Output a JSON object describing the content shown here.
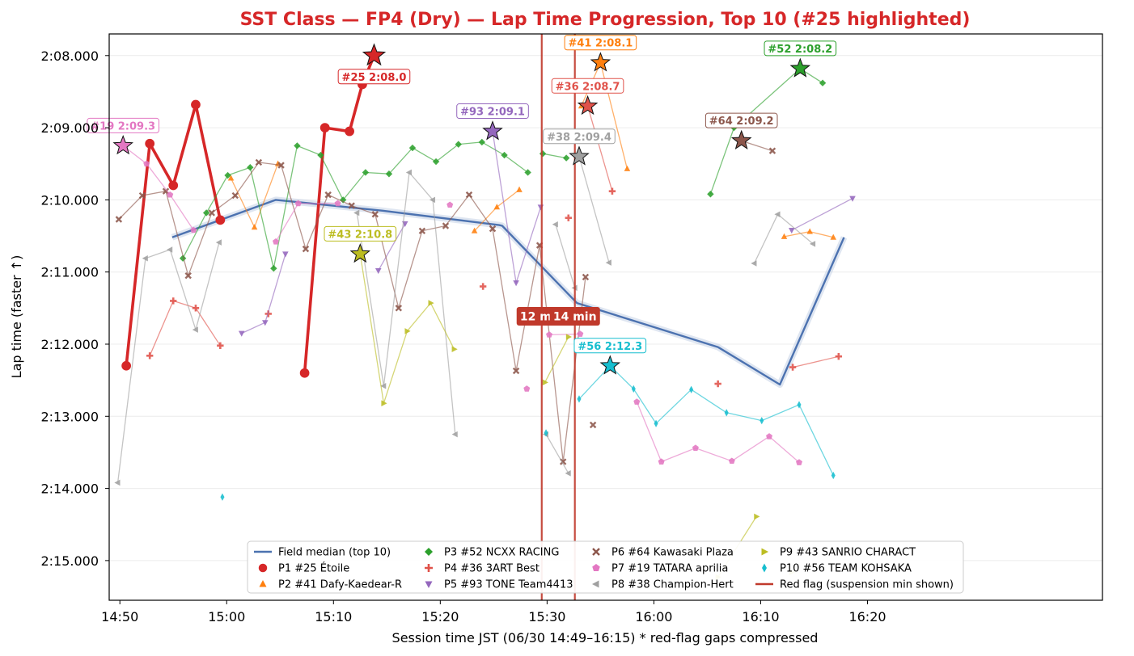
{
  "chart_data": {
    "type": "line",
    "title": "SST Class — FP4 (Dry) — Lap Time Progression, Top 10  (#25 highlighted)",
    "xlabel": "Session time JST (06/30 14:49–16:15)   * red-flag gaps compressed",
    "ylabel": "Lap time (faster ↑)",
    "x_unit": "minutes from 14:50 (plot axis, gaps compressed)",
    "xlim": [
      -1,
      92
    ],
    "x_ticks": [
      {
        "t": 0,
        "label": "14:50"
      },
      {
        "t": 10,
        "label": "15:00"
      },
      {
        "t": 20,
        "label": "15:10"
      },
      {
        "t": 30,
        "label": "15:20"
      },
      {
        "t": 40,
        "label": "15:30"
      },
      {
        "t": 50,
        "label": "16:00"
      },
      {
        "t": 60,
        "label": "16:10"
      },
      {
        "t": 70,
        "label": "16:20"
      }
    ],
    "ylim": [
      127.7,
      135.55
    ],
    "y_ticks": [
      {
        "v": 128,
        "label": "2:08.000"
      },
      {
        "v": 129,
        "label": "2:09.000"
      },
      {
        "v": 130,
        "label": "2:10.000"
      },
      {
        "v": 131,
        "label": "2:11.000"
      },
      {
        "v": 132,
        "label": "2:12.000"
      },
      {
        "v": 133,
        "label": "2:13.000"
      },
      {
        "v": 134,
        "label": "2:14.000"
      },
      {
        "v": 135,
        "label": "2:15.000"
      }
    ],
    "y_inverted": true,
    "grid": "horizontal",
    "legend_position": "lower-center",
    "red_flags": [
      {
        "t": 39.5,
        "label": "12 min"
      },
      {
        "t": 42.6,
        "label": "14 min"
      }
    ],
    "median": {
      "name": "Field median (top 10)",
      "color": "#4c72b0",
      "points": [
        [
          4.9,
          130.52
        ],
        [
          14.6,
          130.0
        ],
        [
          24.6,
          130.15
        ],
        [
          35.5,
          130.35
        ],
        [
          35.8,
          130.36
        ],
        [
          42.8,
          131.43
        ],
        [
          56.0,
          132.04
        ],
        [
          61.8,
          132.56
        ],
        [
          67.8,
          130.52
        ]
      ]
    },
    "series": [
      {
        "name": "P1 #25 Étoile",
        "color": "#d62728",
        "marker": "circle",
        "highlight": true,
        "best": {
          "t": 23.8,
          "v": 128.0,
          "label": "#25 2:08.0"
        },
        "segments": [
          [
            [
              0.6,
              132.3
            ],
            [
              2.8,
              129.22
            ],
            [
              5.0,
              129.8
            ],
            [
              7.1,
              128.68
            ],
            [
              9.4,
              130.28
            ]
          ],
          [
            [
              17.3,
              132.4
            ],
            [
              19.2,
              129.0
            ],
            [
              21.5,
              129.05
            ],
            [
              22.7,
              128.4
            ],
            [
              23.8,
              128.0
            ]
          ]
        ]
      },
      {
        "name": "P2 #41 Dafy-Kaedear-R",
        "color": "#ff7f0e",
        "marker": "triangle-up",
        "best": {
          "t": 45.0,
          "v": 128.1,
          "label": "#41 2:08.1"
        },
        "segments": [
          [
            [
              10.4,
              129.7
            ],
            [
              12.6,
              130.38
            ],
            [
              14.8,
              129.5
            ]
          ],
          [
            [
              33.2,
              130.43
            ],
            [
              35.3,
              130.1
            ],
            [
              37.4,
              129.86
            ]
          ],
          [
            [
              43.2,
              128.7
            ],
            [
              45.0,
              128.1
            ],
            [
              47.5,
              129.57
            ]
          ],
          [
            [
              62.2,
              130.51
            ],
            [
              64.6,
              130.44
            ],
            [
              66.8,
              130.52
            ]
          ]
        ]
      },
      {
        "name": "P3 #52 NCXX RACING",
        "color": "#2ca02c",
        "marker": "diamond",
        "best": {
          "t": 63.7,
          "v": 128.18,
          "label": "#52 2:08.2"
        },
        "segments": [
          [
            [
              5.9,
              130.81
            ],
            [
              8.1,
              130.18
            ],
            [
              10.1,
              129.66
            ],
            [
              12.2,
              129.55
            ],
            [
              14.4,
              130.95
            ],
            [
              16.6,
              129.25
            ],
            [
              18.8,
              129.38
            ],
            [
              20.9,
              130.0
            ],
            [
              23.0,
              129.62
            ],
            [
              25.2,
              129.64
            ],
            [
              27.4,
              129.28
            ],
            [
              29.6,
              129.47
            ],
            [
              31.7,
              129.23
            ],
            [
              33.9,
              129.2
            ],
            [
              36.0,
              129.38
            ],
            [
              38.2,
              129.62
            ]
          ],
          [
            [
              39.6,
              129.36
            ],
            [
              41.8,
              129.42
            ]
          ],
          [
            [
              55.3,
              129.92
            ],
            [
              57.5,
              129.0
            ],
            [
              63.7,
              128.18
            ],
            [
              65.8,
              128.38
            ]
          ]
        ]
      },
      {
        "name": "P4 #36 3ART Best",
        "color": "#e0524a",
        "marker": "plus",
        "best": {
          "t": 43.8,
          "v": 128.7,
          "label": "#36 2:08.7"
        },
        "segments": [
          [
            [
              2.8,
              132.16
            ],
            [
              5.0,
              131.4
            ],
            [
              7.1,
              131.5
            ],
            [
              9.4,
              132.02
            ]
          ],
          [
            [
              13.9,
              131.58
            ]
          ],
          [
            [
              34.0,
              131.2
            ]
          ],
          [
            [
              42.0,
              130.25
            ]
          ],
          [
            [
              43.8,
              128.7
            ],
            [
              46.1,
              129.88
            ]
          ],
          [
            [
              56.0,
              132.55
            ]
          ],
          [
            [
              63.0,
              132.32
            ],
            [
              67.3,
              132.17
            ]
          ]
        ]
      },
      {
        "name": "P5 #93 TONE Team4413",
        "color": "#9467bd",
        "marker": "triangle-down",
        "best": {
          "t": 34.9,
          "v": 129.05,
          "label": "#93 2:09.1"
        },
        "segments": [
          [
            [
              11.4,
              131.85
            ],
            [
              13.6,
              131.7
            ],
            [
              15.5,
              130.75
            ]
          ],
          [
            [
              24.2,
              130.98
            ],
            [
              26.7,
              130.33
            ]
          ],
          [
            [
              34.9,
              129.05
            ],
            [
              37.1,
              131.15
            ],
            [
              39.4,
              130.1
            ]
          ],
          [
            [
              62.9,
              130.42
            ],
            [
              68.6,
              129.98
            ]
          ]
        ]
      },
      {
        "name": "P6 #64 Kawasaki Plaza",
        "color": "#8c564b",
        "marker": "x",
        "best": {
          "t": 58.2,
          "v": 129.18,
          "label": "#64 2:09.2"
        },
        "segments": [
          [
            [
              -0.1,
              130.27
            ],
            [
              2.1,
              129.94
            ],
            [
              4.3,
              129.88
            ],
            [
              6.4,
              131.05
            ],
            [
              8.6,
              130.18
            ],
            [
              10.8,
              129.94
            ],
            [
              13.0,
              129.48
            ],
            [
              15.1,
              129.52
            ],
            [
              17.4,
              130.68
            ],
            [
              19.5,
              129.93
            ],
            [
              21.7,
              130.08
            ],
            [
              23.9,
              130.2
            ],
            [
              26.1,
              131.5
            ],
            [
              28.3,
              130.43
            ],
            [
              30.5,
              130.36
            ],
            [
              32.7,
              129.93
            ],
            [
              34.9,
              130.4
            ],
            [
              37.1,
              132.37
            ],
            [
              39.3,
              130.63
            ],
            [
              41.5,
              133.63
            ],
            [
              43.6,
              131.07
            ]
          ],
          [
            [
              44.3,
              133.12
            ]
          ],
          [
            [
              58.2,
              129.18
            ],
            [
              61.1,
              129.32
            ]
          ]
        ]
      },
      {
        "name": "P7 #19 TATARA aprilia",
        "color": "#e377c2",
        "marker": "pentagon",
        "best": {
          "t": 0.3,
          "v": 129.25,
          "label": "#19 2:09.3"
        },
        "segments": [
          [
            [
              0.3,
              129.25
            ],
            [
              2.5,
              129.5
            ],
            [
              4.7,
              129.93
            ],
            [
              6.9,
              130.42
            ]
          ],
          [
            [
              14.6,
              130.58
            ],
            [
              16.7,
              130.05
            ],
            [
              20.4,
              130.05
            ]
          ],
          [
            [
              30.9,
              130.07
            ]
          ],
          [
            [
              38.1,
              132.62
            ]
          ],
          [
            [
              40.2,
              131.87
            ],
            [
              43.1,
              131.86
            ]
          ],
          [
            [
              48.4,
              132.8
            ],
            [
              50.7,
              133.63
            ],
            [
              53.9,
              133.44
            ],
            [
              57.3,
              133.62
            ],
            [
              60.8,
              133.28
            ],
            [
              63.6,
              133.64
            ]
          ]
        ]
      },
      {
        "name": "P8 #38 Champion-Hert",
        "color": "#a0a0a0",
        "marker": "triangle-left",
        "best": {
          "t": 43.0,
          "v": 129.4,
          "label": "#38 2:09.4"
        },
        "segments": [
          [
            [
              -0.2,
              133.92
            ],
            [
              2.4,
              130.81
            ],
            [
              4.7,
              130.69
            ],
            [
              7.1,
              131.8
            ],
            [
              9.3,
              130.59
            ]
          ],
          [
            [
              22.2,
              130.18
            ],
            [
              24.7,
              132.58
            ],
            [
              27.1,
              129.62
            ],
            [
              29.3,
              130.0
            ],
            [
              31.4,
              133.25
            ]
          ],
          [
            [
              39.9,
              133.25
            ],
            [
              42.0,
              133.79
            ]
          ],
          [
            [
              40.8,
              130.34
            ],
            [
              42.6,
              131.22
            ]
          ],
          [
            [
              43.0,
              129.4
            ],
            [
              45.8,
              130.87
            ]
          ],
          [
            [
              59.4,
              130.88
            ],
            [
              61.6,
              130.2
            ],
            [
              64.9,
              130.61
            ]
          ]
        ]
      },
      {
        "name": "P9 #43 SANRIO CHARACT",
        "color": "#bcbd22",
        "marker": "triangle-right",
        "best": {
          "t": 22.5,
          "v": 130.75,
          "label": "#43 2:10.8"
        },
        "segments": [
          [
            [
              22.5,
              130.75
            ],
            [
              24.7,
              132.82
            ],
            [
              26.9,
              131.82
            ],
            [
              29.1,
              131.43
            ],
            [
              31.3,
              132.07
            ]
          ],
          [
            [
              39.8,
              132.53
            ],
            [
              42.0,
              131.9
            ]
          ],
          [
            [
              56.0,
              135.23
            ],
            [
              59.6,
              134.39
            ]
          ],
          [
            [
              62.9,
              135.16
            ]
          ]
        ]
      },
      {
        "name": "P10 #56 TEAM KOHSAKA",
        "color": "#17becf",
        "marker": "thin-diamond",
        "best": {
          "t": 45.9,
          "v": 132.3,
          "label": "#56 2:12.3"
        },
        "segments": [
          [
            [
              9.6,
              134.12
            ]
          ],
          [
            [
              39.9,
              133.23
            ]
          ],
          [
            [
              43.0,
              132.76
            ],
            [
              45.9,
              132.3
            ],
            [
              48.1,
              132.62
            ],
            [
              50.2,
              133.1
            ],
            [
              53.5,
              132.63
            ],
            [
              56.8,
              132.95
            ],
            [
              60.1,
              133.06
            ],
            [
              63.6,
              132.84
            ],
            [
              66.8,
              133.82
            ]
          ]
        ]
      }
    ]
  }
}
